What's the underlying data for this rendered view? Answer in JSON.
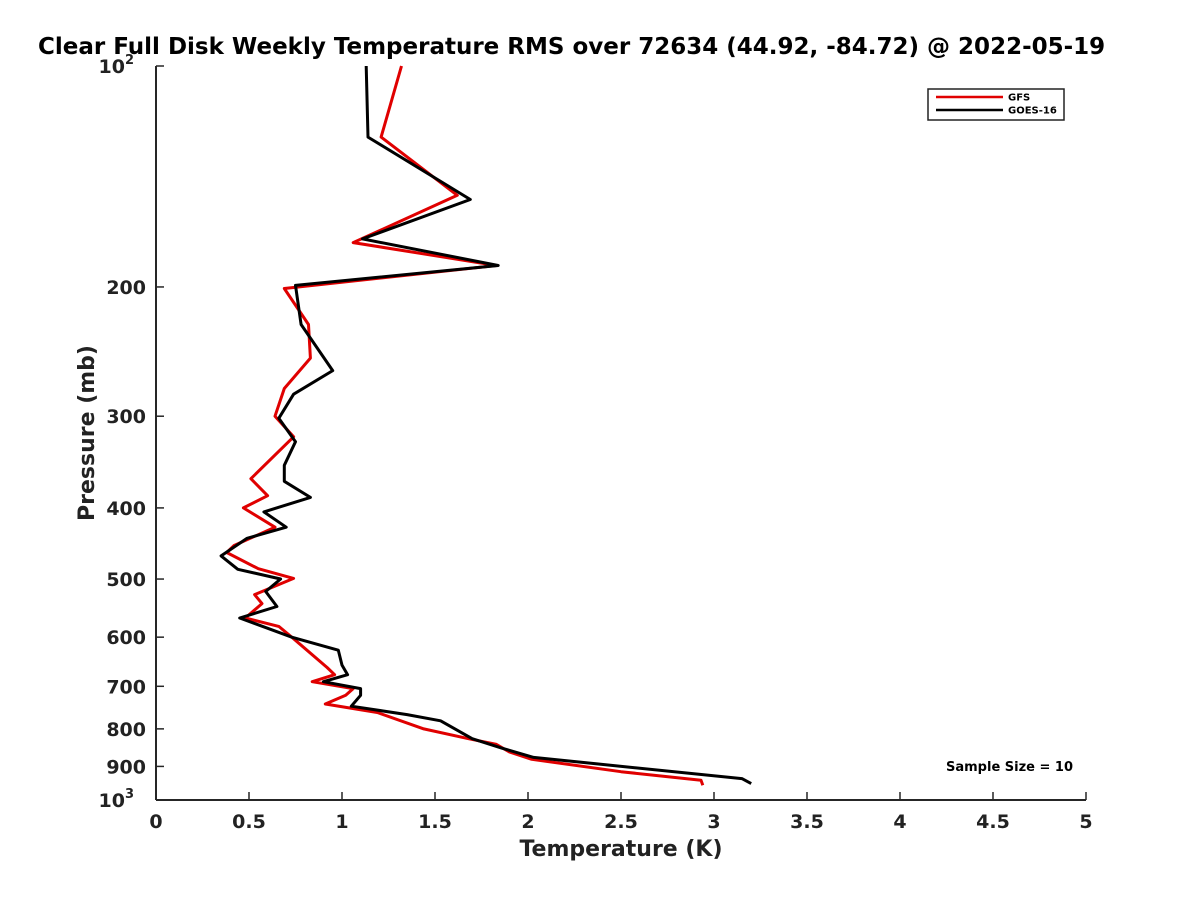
{
  "chart_data": {
    "type": "line",
    "title": "Clear Full Disk Weekly Temperature RMS over 72634 (44.92, -84.72) @ 2022-05-19",
    "xlabel": "Temperature (K)",
    "ylabel": "Pressure (mb)",
    "xlim": [
      0,
      5
    ],
    "ylim": [
      100,
      1000
    ],
    "y_scale": "log",
    "y_reversed": true,
    "grid": false,
    "legend_position": "top-right",
    "x_ticks": [
      "0",
      "0.5",
      "1",
      "1.5",
      "2",
      "2.5",
      "3",
      "3.5",
      "4",
      "4.5",
      "5"
    ],
    "x_tick_values": [
      0,
      0.5,
      1,
      1.5,
      2,
      2.5,
      3,
      3.5,
      4,
      4.5,
      5
    ],
    "y_ticks": [
      {
        "value": 100,
        "base": "10",
        "exp": "2"
      },
      {
        "value": 200,
        "label": "200"
      },
      {
        "value": 300,
        "label": "300"
      },
      {
        "value": 400,
        "label": "400"
      },
      {
        "value": 500,
        "label": "500"
      },
      {
        "value": 600,
        "label": "600"
      },
      {
        "value": 700,
        "label": "700"
      },
      {
        "value": 800,
        "label": "800"
      },
      {
        "value": 900,
        "label": "900"
      },
      {
        "value": 1000,
        "base": "10",
        "exp": "3"
      }
    ],
    "annotation": "Sample Size = 10",
    "series": [
      {
        "name": "GFS",
        "color": "#e00000",
        "points": [
          [
            1.32,
            100
          ],
          [
            1.21,
            125
          ],
          [
            1.62,
            150
          ],
          [
            1.06,
            174
          ],
          [
            1.83,
            187
          ],
          [
            0.69,
            201
          ],
          [
            0.82,
            225
          ],
          [
            0.83,
            250
          ],
          [
            0.69,
            275
          ],
          [
            0.64,
            300
          ],
          [
            0.74,
            320
          ],
          [
            0.51,
            365
          ],
          [
            0.6,
            385
          ],
          [
            0.47,
            400
          ],
          [
            0.64,
            425
          ],
          [
            0.42,
            450
          ],
          [
            0.38,
            460
          ],
          [
            0.55,
            484
          ],
          [
            0.74,
            499
          ],
          [
            0.53,
            525
          ],
          [
            0.57,
            540
          ],
          [
            0.48,
            565
          ],
          [
            0.66,
            580
          ],
          [
            0.73,
            600
          ],
          [
            0.92,
            660
          ],
          [
            0.96,
            675
          ],
          [
            0.84,
            690
          ],
          [
            1.06,
            705
          ],
          [
            1.02,
            720
          ],
          [
            0.91,
            740
          ],
          [
            1.19,
            760
          ],
          [
            1.44,
            800
          ],
          [
            1.68,
            825
          ],
          [
            1.83,
            840
          ],
          [
            1.9,
            860
          ],
          [
            2.02,
            880
          ],
          [
            2.5,
            915
          ],
          [
            2.93,
            940
          ],
          [
            2.94,
            955
          ]
        ]
      },
      {
        "name": "GOES-16",
        "color": "#000000",
        "points": [
          [
            1.13,
            100
          ],
          [
            1.14,
            125
          ],
          [
            1.69,
            152
          ],
          [
            1.11,
            172
          ],
          [
            1.84,
            187
          ],
          [
            0.75,
            199
          ],
          [
            0.78,
            225
          ],
          [
            0.95,
            260
          ],
          [
            0.74,
            280
          ],
          [
            0.66,
            302
          ],
          [
            0.75,
            325
          ],
          [
            0.69,
            350
          ],
          [
            0.69,
            368
          ],
          [
            0.83,
            387
          ],
          [
            0.58,
            405
          ],
          [
            0.7,
            425
          ],
          [
            0.49,
            440
          ],
          [
            0.35,
            465
          ],
          [
            0.44,
            485
          ],
          [
            0.67,
            500
          ],
          [
            0.59,
            520
          ],
          [
            0.65,
            545
          ],
          [
            0.45,
            565
          ],
          [
            0.73,
            600
          ],
          [
            0.98,
            625
          ],
          [
            1.0,
            655
          ],
          [
            1.03,
            675
          ],
          [
            0.9,
            690
          ],
          [
            1.1,
            705
          ],
          [
            1.1,
            720
          ],
          [
            1.05,
            745
          ],
          [
            1.35,
            765
          ],
          [
            1.53,
            780
          ],
          [
            1.7,
            825
          ],
          [
            1.86,
            850
          ],
          [
            2.03,
            875
          ],
          [
            3.15,
            935
          ],
          [
            3.2,
            950
          ]
        ]
      }
    ]
  }
}
